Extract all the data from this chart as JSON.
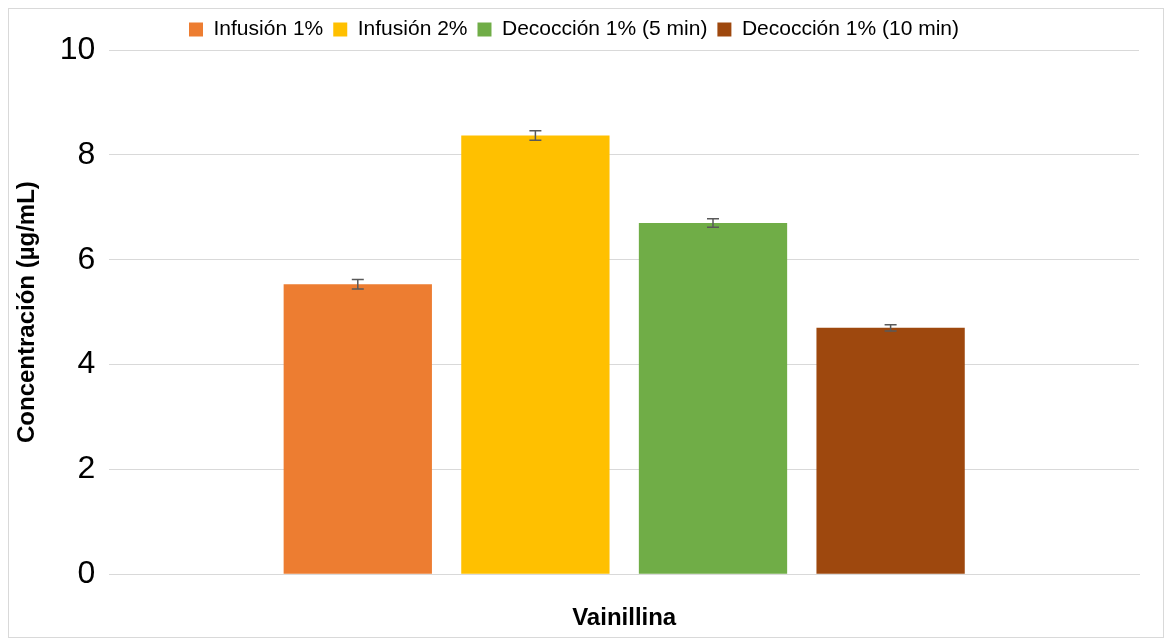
{
  "chart_data": {
    "type": "bar",
    "xlabel": "Vainillina",
    "ylabel": "Concentración (µg/mL)",
    "categories": [
      null
    ],
    "series": [
      {
        "name": "Infusión 1%",
        "color": "#ed7d31",
        "values": [
          5.53
        ],
        "errors": [
          0.09
        ]
      },
      {
        "name": "Infusión 2%",
        "color": "#ffc000",
        "values": [
          8.37
        ],
        "errors": [
          0.09
        ]
      },
      {
        "name": "Decocción 1% (5 min)",
        "color": "#70ad47",
        "values": [
          6.7
        ],
        "errors": [
          0.08
        ]
      },
      {
        "name": "Decocción 1% (10 min)",
        "color": "#9e480e",
        "values": [
          4.7
        ],
        "errors": [
          0.06
        ]
      }
    ],
    "ylim": [
      0,
      10
    ],
    "yticks": [
      0,
      2,
      4,
      6,
      8,
      10
    ],
    "grid": "y",
    "legend": "top"
  }
}
